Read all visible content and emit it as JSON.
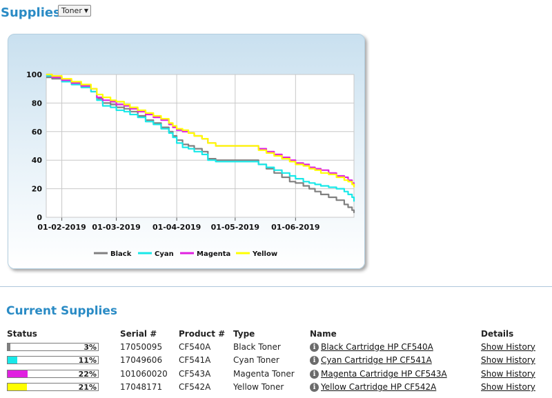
{
  "header": {
    "title": "Supplies",
    "selector_value": "Toner"
  },
  "chart_data": {
    "type": "line",
    "x_tick_labels": [
      "01-02-2019",
      "01-03-2019",
      "01-04-2019",
      "01-05-2019",
      "01-06-2019"
    ],
    "x_ticks_day": [
      31,
      59,
      90,
      120,
      151
    ],
    "xlim_day": [
      23,
      181
    ],
    "y_ticks": [
      0,
      20,
      40,
      60,
      80,
      100
    ],
    "ylim": [
      0,
      100
    ],
    "grid": true,
    "legend_position": "bottom-center",
    "series": [
      {
        "name": "Black",
        "color": "#808080",
        "points": [
          [
            23,
            98
          ],
          [
            26,
            97
          ],
          [
            31,
            95
          ],
          [
            36,
            93
          ],
          [
            41,
            91
          ],
          [
            46,
            88
          ],
          [
            49,
            83
          ],
          [
            52,
            80
          ],
          [
            56,
            79
          ],
          [
            59,
            77
          ],
          [
            63,
            76
          ],
          [
            66,
            74
          ],
          [
            70,
            71
          ],
          [
            74,
            68
          ],
          [
            78,
            66
          ],
          [
            82,
            63
          ],
          [
            86,
            60
          ],
          [
            88,
            57
          ],
          [
            90,
            54
          ],
          [
            93,
            51
          ],
          [
            96,
            50
          ],
          [
            99,
            48
          ],
          [
            103,
            46
          ],
          [
            106,
            41
          ],
          [
            110,
            40
          ],
          [
            115,
            40
          ],
          [
            120,
            40
          ],
          [
            125,
            40
          ],
          [
            130,
            40
          ],
          [
            132,
            37
          ],
          [
            136,
            34
          ],
          [
            140,
            31
          ],
          [
            144,
            28
          ],
          [
            148,
            25
          ],
          [
            151,
            24
          ],
          [
            155,
            22
          ],
          [
            158,
            20
          ],
          [
            161,
            18
          ],
          [
            164,
            16
          ],
          [
            168,
            14
          ],
          [
            172,
            12
          ],
          [
            176,
            9
          ],
          [
            178,
            7
          ],
          [
            180,
            5
          ],
          [
            181,
            3
          ]
        ]
      },
      {
        "name": "Cyan",
        "color": "#18e8e8",
        "points": [
          [
            23,
            99
          ],
          [
            26,
            98
          ],
          [
            31,
            95
          ],
          [
            36,
            93
          ],
          [
            41,
            91
          ],
          [
            46,
            88
          ],
          [
            49,
            82
          ],
          [
            52,
            78
          ],
          [
            56,
            77
          ],
          [
            59,
            75
          ],
          [
            63,
            74
          ],
          [
            66,
            72
          ],
          [
            70,
            70
          ],
          [
            74,
            67
          ],
          [
            78,
            65
          ],
          [
            82,
            62
          ],
          [
            86,
            59
          ],
          [
            88,
            56
          ],
          [
            90,
            52
          ],
          [
            93,
            49
          ],
          [
            96,
            48
          ],
          [
            99,
            46
          ],
          [
            103,
            44
          ],
          [
            106,
            40
          ],
          [
            110,
            39
          ],
          [
            115,
            39
          ],
          [
            120,
            39
          ],
          [
            125,
            39
          ],
          [
            130,
            39
          ],
          [
            132,
            37
          ],
          [
            136,
            35
          ],
          [
            140,
            33
          ],
          [
            144,
            31
          ],
          [
            148,
            29
          ],
          [
            151,
            27
          ],
          [
            155,
            25
          ],
          [
            158,
            24
          ],
          [
            161,
            23
          ],
          [
            164,
            22
          ],
          [
            168,
            21
          ],
          [
            172,
            20
          ],
          [
            176,
            18
          ],
          [
            178,
            16
          ],
          [
            180,
            14
          ],
          [
            181,
            11
          ]
        ]
      },
      {
        "name": "Magenta",
        "color": "#e020e0",
        "points": [
          [
            23,
            100
          ],
          [
            26,
            98
          ],
          [
            31,
            96
          ],
          [
            36,
            94
          ],
          [
            41,
            92
          ],
          [
            46,
            90
          ],
          [
            49,
            84
          ],
          [
            52,
            82
          ],
          [
            56,
            81
          ],
          [
            59,
            79
          ],
          [
            63,
            78
          ],
          [
            66,
            76
          ],
          [
            70,
            74
          ],
          [
            74,
            72
          ],
          [
            78,
            70
          ],
          [
            82,
            68
          ],
          [
            86,
            65
          ],
          [
            88,
            63
          ],
          [
            90,
            61
          ],
          [
            93,
            60
          ],
          [
            96,
            59
          ],
          [
            99,
            57
          ],
          [
            103,
            55
          ],
          [
            106,
            52
          ],
          [
            110,
            50
          ],
          [
            115,
            50
          ],
          [
            120,
            50
          ],
          [
            125,
            50
          ],
          [
            130,
            50
          ],
          [
            132,
            48
          ],
          [
            136,
            46
          ],
          [
            140,
            44
          ],
          [
            144,
            42
          ],
          [
            148,
            40
          ],
          [
            151,
            38
          ],
          [
            155,
            37
          ],
          [
            158,
            35
          ],
          [
            161,
            34
          ],
          [
            164,
            33
          ],
          [
            168,
            31
          ],
          [
            172,
            29
          ],
          [
            176,
            28
          ],
          [
            178,
            26
          ],
          [
            180,
            24
          ],
          [
            181,
            22
          ]
        ]
      },
      {
        "name": "Yellow",
        "color": "#ffff00",
        "points": [
          [
            23,
            100
          ],
          [
            26,
            99
          ],
          [
            31,
            97
          ],
          [
            36,
            95
          ],
          [
            41,
            93
          ],
          [
            46,
            90
          ],
          [
            49,
            86
          ],
          [
            52,
            84
          ],
          [
            56,
            82
          ],
          [
            59,
            81
          ],
          [
            63,
            79
          ],
          [
            66,
            77
          ],
          [
            70,
            75
          ],
          [
            74,
            73
          ],
          [
            78,
            71
          ],
          [
            82,
            69
          ],
          [
            86,
            66
          ],
          [
            88,
            64
          ],
          [
            90,
            62
          ],
          [
            93,
            61
          ],
          [
            96,
            59
          ],
          [
            99,
            57
          ],
          [
            103,
            55
          ],
          [
            106,
            52
          ],
          [
            110,
            50
          ],
          [
            115,
            50
          ],
          [
            120,
            50
          ],
          [
            125,
            50
          ],
          [
            130,
            50
          ],
          [
            132,
            47
          ],
          [
            136,
            45
          ],
          [
            140,
            43
          ],
          [
            144,
            41
          ],
          [
            148,
            39
          ],
          [
            151,
            37
          ],
          [
            155,
            36
          ],
          [
            158,
            34
          ],
          [
            161,
            33
          ],
          [
            164,
            31
          ],
          [
            168,
            30
          ],
          [
            172,
            28
          ],
          [
            176,
            26
          ],
          [
            178,
            25
          ],
          [
            180,
            23
          ],
          [
            181,
            21
          ]
        ]
      }
    ]
  },
  "current_supplies": {
    "title": "Current Supplies",
    "columns": [
      "Status",
      "Serial #",
      "Product #",
      "Type",
      "Name",
      "Details"
    ],
    "rows": [
      {
        "status_pct": "3%",
        "level": 0.03,
        "color": "#808080",
        "serial": "17050095",
        "product": "CF540A",
        "type": "Black Toner",
        "name": "Black Cartridge HP CF540A",
        "details": "Show History"
      },
      {
        "status_pct": "11%",
        "level": 0.11,
        "color": "#18e8e8",
        "serial": "17049606",
        "product": "CF541A",
        "type": "Cyan Toner",
        "name": "Cyan Cartridge HP CF541A",
        "details": "Show History"
      },
      {
        "status_pct": "22%",
        "level": 0.22,
        "color": "#e020e0",
        "serial": "101060020",
        "product": "CF543A",
        "type": "Magenta Toner",
        "name": "Magenta Cartridge HP CF543A",
        "details": "Show History"
      },
      {
        "status_pct": "21%",
        "level": 0.21,
        "color": "#ffff00",
        "serial": "17048171",
        "product": "CF542A",
        "type": "Yellow Toner",
        "name": "Yellow Cartridge HP CF542A",
        "details": "Show History"
      }
    ],
    "info_icon": "info-icon"
  }
}
